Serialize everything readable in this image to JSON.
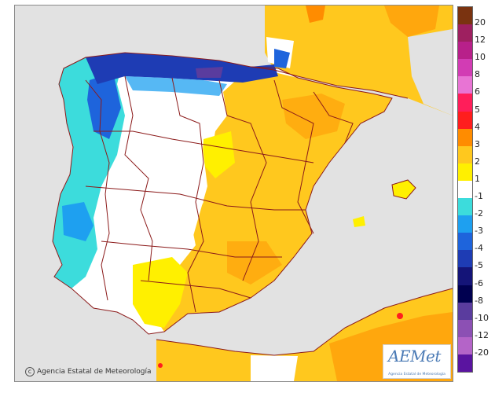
{
  "credit": {
    "copyright_symbol": "c",
    "text": "Agencia Estatal de Meteorología"
  },
  "logo": {
    "wordmark": "AEMet",
    "tagline": "Agencia Estatal de Meteorología"
  },
  "legend": {
    "labels": [
      "20",
      "12",
      "10",
      "8",
      "6",
      "5",
      "4",
      "3",
      "2",
      "1",
      "-1",
      "-2",
      "-3",
      "-4",
      "-5",
      "-6",
      "-8",
      "-10",
      "-12",
      "-20"
    ],
    "colors": [
      "#7a3310",
      "#9e2060",
      "#b8208a",
      "#d23cb4",
      "#e874d4",
      "#ff1e5a",
      "#ff1e1e",
      "#ff8c00",
      "#ffc81e",
      "#fff000",
      "#ffffff",
      "#3cdcdc",
      "#1ea0f0",
      "#1e64dc",
      "#1e3cb4",
      "#141478",
      "#000050",
      "#5a3c9e",
      "#8c50b4",
      "#b464c8",
      "#5a14a0"
    ]
  },
  "map": {
    "colors": {
      "sea": "#e2e2e2",
      "land_neutral": "#ffffff",
      "warm_1": "#fff000",
      "warm_2": "#ffc81e",
      "warm_3": "#ff8c00",
      "warm_4": "#ff1e1e",
      "cold_1": "#3cdcdc",
      "cold_2": "#1ea0f0",
      "cold_3": "#1e64dc",
      "cold_4": "#1e3cb4",
      "cold_5": "#5a3c9e",
      "border": "#8b1a1a"
    }
  }
}
